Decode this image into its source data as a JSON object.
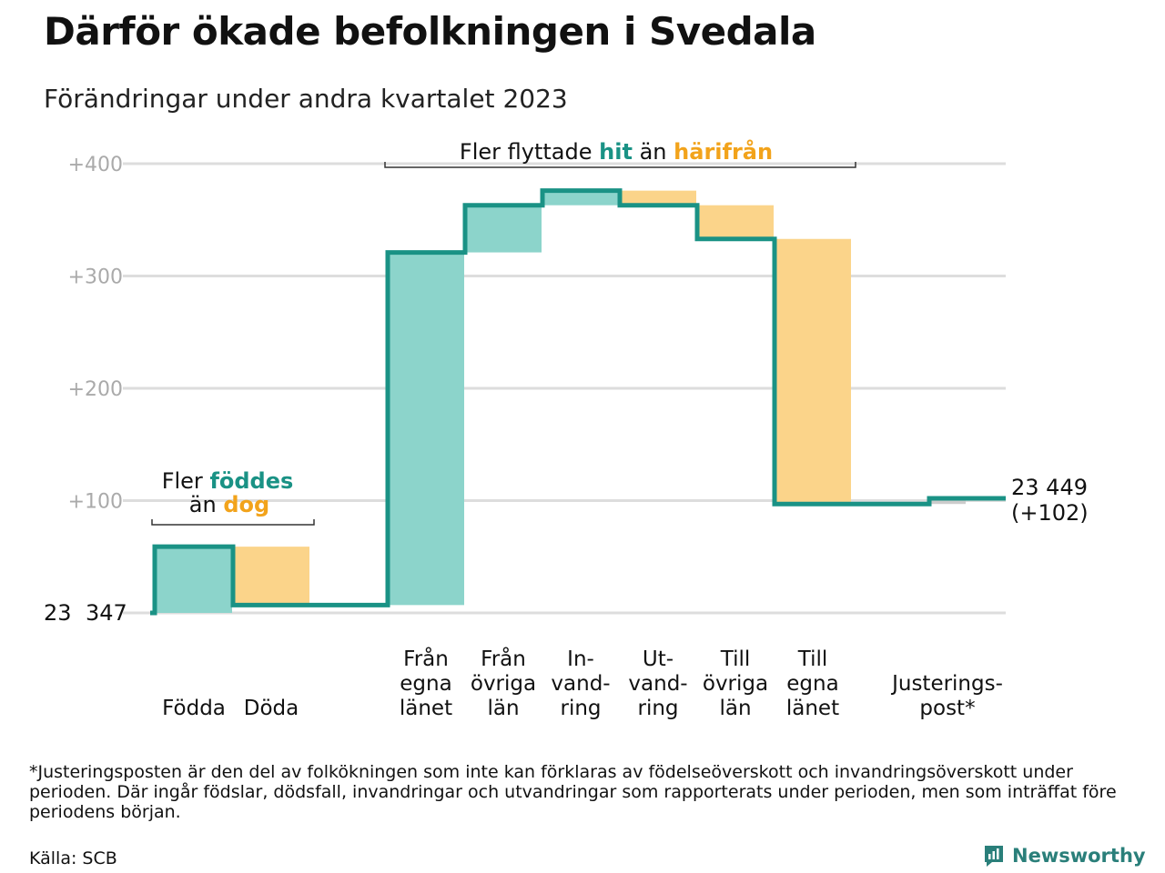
{
  "title": "Därför ökade befolkningen i Svedala",
  "subtitle": "Förändringar under andra kvartalet 2023",
  "chart_data": {
    "type": "waterfall",
    "start": {
      "label_parts": [
        "23",
        "347"
      ],
      "value": 0
    },
    "end": {
      "label_line1": "23 449",
      "label_line2": "(+102)",
      "value": 102
    },
    "y_ticks": [
      {
        "value": 100,
        "label": "+100"
      },
      {
        "value": 200,
        "label": "+200"
      },
      {
        "value": 300,
        "label": "+300"
      },
      {
        "value": 400,
        "label": "+400"
      }
    ],
    "ylim": [
      0,
      400
    ],
    "grid": true,
    "steps": [
      {
        "label": [
          "Födda"
        ],
        "delta": 59
      },
      {
        "label": [
          "Döda"
        ],
        "delta": -52
      },
      {
        "label": [
          "Från",
          "egna",
          "länet"
        ],
        "delta": 314
      },
      {
        "label": [
          "Från",
          "övriga",
          "län"
        ],
        "delta": 42
      },
      {
        "label": [
          "In-",
          "vand-",
          "ring"
        ],
        "delta": 13
      },
      {
        "label": [
          "Ut-",
          "vand-",
          "ring"
        ],
        "delta": -13
      },
      {
        "label": [
          "Till",
          "övriga",
          "län"
        ],
        "delta": -30
      },
      {
        "label": [
          "Till",
          "egna",
          "länet"
        ],
        "delta": -236
      },
      {
        "label": [
          "Justerings-",
          "post*"
        ],
        "delta": 5
      }
    ],
    "annotations": {
      "birth": {
        "line1_plain": "Fler",
        "line1_colored": "föddes",
        "line2_plain": "än",
        "line2_colored": "dog"
      },
      "migration": {
        "plain1": "Fler flyttade",
        "colored1": "hit",
        "plain2": "än",
        "colored2": "härifrån"
      }
    },
    "colors": {
      "positive_fill": "#8cd4cb",
      "negative_fill": "#fbd48a",
      "line": "#1a9285",
      "teal_text": "#1a9285",
      "orange_text": "#f2a31b",
      "grid": "#dddddd",
      "tick_text": "#aaaaaa",
      "adjust_fill": "#cccccc"
    }
  },
  "footnote": "*Justeringsposten är den del av folkökningen som inte kan förklaras av födelseöverskott och invandringsöverskott under perioden. Där ingår födslar, dödsfall, invandringar och utvandringar som rapporterats under perioden, men som inträffat före periodens början.",
  "source": "Källa: SCB",
  "brand": {
    "name": "Newsworthy",
    "icon": "newsworthy-logo-icon"
  }
}
